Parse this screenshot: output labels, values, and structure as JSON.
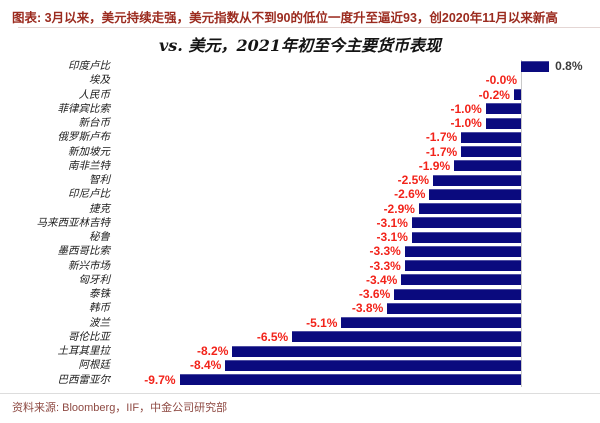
{
  "header": {
    "text": "图表: 3月以来，美元持续走强，美元指数从不到90的低位一度升至逼近93，创2020年11月以来新高",
    "color": "#9b2b1f"
  },
  "chart_data": {
    "type": "bar",
    "orientation": "horizontal",
    "title": "vs. 美元，2021年初至今主要货币表现",
    "categories": [
      "印度卢比",
      "埃及",
      "人民币",
      "菲律宾比索",
      "新台币",
      "俄罗斯卢布",
      "新加坡元",
      "南非兰特",
      "智利",
      "印尼卢比",
      "捷克",
      "马来西亚林吉特",
      "秘鲁",
      "墨西哥比索",
      "新兴市场",
      "匈牙利",
      "泰铢",
      "韩币",
      "波兰",
      "哥伦比亚",
      "土耳其里拉",
      "阿根廷",
      "巴西雷亚尔"
    ],
    "values": [
      0.8,
      -0.0,
      -0.2,
      -1.0,
      -1.0,
      -1.7,
      -1.7,
      -1.9,
      -2.5,
      -2.6,
      -2.9,
      -3.1,
      -3.1,
      -3.3,
      -3.3,
      -3.4,
      -3.6,
      -3.8,
      -5.1,
      -6.5,
      -8.2,
      -8.4,
      -9.7
    ],
    "value_labels": [
      "0.8%",
      "-0.0%",
      "-0.2%",
      "-1.0%",
      "-1.0%",
      "-1.7%",
      "-1.7%",
      "-1.9%",
      "-2.5%",
      "-2.6%",
      "-2.9%",
      "-3.1%",
      "-3.1%",
      "-3.3%",
      "-3.3%",
      "-3.4%",
      "-3.6%",
      "-3.8%",
      "-5.1%",
      "-6.5%",
      "-8.2%",
      "-8.4%",
      "-9.7%"
    ],
    "bar_color": "#0a0a7e",
    "negative_value_color": "#f2231a",
    "positive_value_color": "#3d3d3d",
    "axis": {
      "zero_line": true,
      "zero_line_color": "#c9c9c9",
      "xlim": [
        -10.5,
        2.3
      ],
      "grid": false
    },
    "legend_position": "none"
  },
  "footer": {
    "text": "资料来源: Bloomberg，IIF，中金公司研究部"
  }
}
